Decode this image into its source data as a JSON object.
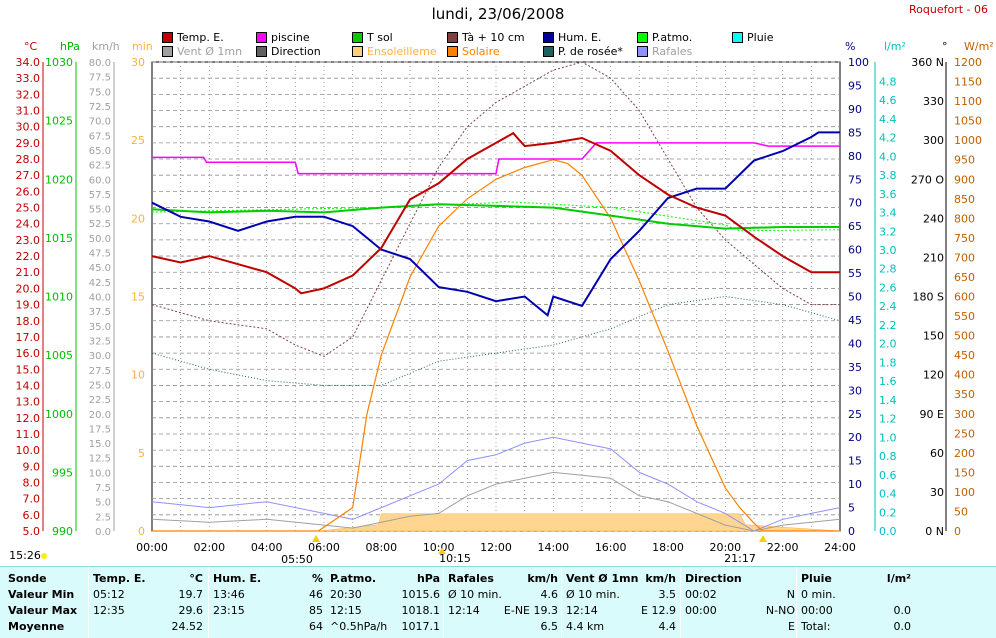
{
  "header": {
    "title": "lundi, 23/06/2008",
    "station": "Roquefort - 06"
  },
  "legend": [
    {
      "label": "Temp. E.",
      "color": "#c00000"
    },
    {
      "label": "piscine",
      "color": "#ff00ff"
    },
    {
      "label": "T sol",
      "color": "#00cc00"
    },
    {
      "label": "Tà + 10 cm",
      "color": "#804040"
    },
    {
      "label": "Hum. E.",
      "color": "#0000a0"
    },
    {
      "label": "P.atmo.",
      "color": "#00ff00"
    },
    {
      "label": "Pluie",
      "color": "#00ffff"
    },
    {
      "label": "Vent Ø 1mn",
      "color": "#a0a0a0"
    },
    {
      "label": "Direction",
      "color": "#606060"
    },
    {
      "label": "Ensoleilleme",
      "color": "#ffd080"
    },
    {
      "label": "Solaire",
      "color": "#ff8000"
    },
    {
      "label": "P. de rosée*",
      "color": "#206060"
    },
    {
      "label": "Rafales",
      "color": "#9090ff"
    }
  ],
  "axes": {
    "units": [
      "°C",
      "hPa",
      "km/h",
      "min",
      "%",
      "l/m²",
      "°",
      "W/m²"
    ],
    "temp_ticks": [
      "34.0",
      "33.0",
      "32.0",
      "31.0",
      "30.0",
      "29.0",
      "28.0",
      "27.0",
      "26.0",
      "25.0",
      "24.0",
      "23.0",
      "22.0",
      "21.0",
      "20.0",
      "19.0",
      "18.0",
      "17.0",
      "16.0",
      "15.0",
      "14.0",
      "13.0",
      "12.0",
      "11.0",
      "10.0",
      "9.0",
      "8.0",
      "7.0",
      "6.0",
      "5.0"
    ],
    "press_ticks": [
      "1030",
      "1025",
      "1020",
      "1015",
      "1010",
      "1005",
      "1000",
      "995",
      "990"
    ],
    "wind_ticks": [
      "80.0",
      "77.5",
      "75.0",
      "72.5",
      "70.0",
      "67.5",
      "65.0",
      "62.5",
      "60.0",
      "57.5",
      "55.0",
      "52.5",
      "50.0",
      "47.5",
      "45.0",
      "42.5",
      "40.0",
      "37.5",
      "35.0",
      "32.5",
      "30.0",
      "27.5",
      "25.0",
      "22.5",
      "20.0",
      "17.5",
      "15.0",
      "12.5",
      "10.0",
      "7.5",
      "5.0",
      "2.5",
      "0.0"
    ],
    "min_ticks": [
      "30",
      "25",
      "20",
      "15",
      "10",
      "5",
      "0"
    ],
    "hum_ticks": [
      "100",
      "95",
      "90",
      "85",
      "80",
      "75",
      "70",
      "65",
      "60",
      "55",
      "50",
      "45",
      "40",
      "35",
      "30",
      "25",
      "20",
      "15",
      "10",
      "5",
      "0"
    ],
    "rain_ticks": [
      "4.8",
      "4.6",
      "4.4",
      "4.2",
      "4.0",
      "3.8",
      "3.6",
      "3.4",
      "3.2",
      "3.0",
      "2.8",
      "2.6",
      "2.4",
      "2.2",
      "2.0",
      "1.8",
      "1.6",
      "1.4",
      "1.2",
      "1.0",
      "0.8",
      "0.6",
      "0.4",
      "0.2",
      "0.0"
    ],
    "dir_ticks": [
      "360 N",
      "330",
      "300",
      "270 O",
      "240",
      "210",
      "180 S",
      "150",
      "120",
      "90 E",
      "60",
      "30",
      "0 N"
    ],
    "solar_ticks": [
      "1200",
      "1150",
      "1100",
      "1050",
      "1000",
      "950",
      "900",
      "850",
      "800",
      "750",
      "700",
      "650",
      "600",
      "550",
      "500",
      "450",
      "400",
      "350",
      "300",
      "250",
      "200",
      "150",
      "100",
      "50",
      "0"
    ],
    "time_ticks": [
      "00:00",
      "02:00",
      "04:00",
      "06:00",
      "08:00",
      "10:00",
      "12:00",
      "14:00",
      "16:00",
      "18:00",
      "20:00",
      "22:00",
      "24:00"
    ]
  },
  "events": [
    {
      "label": "15:26"
    },
    {
      "label": "05:50"
    },
    {
      "label": "10:15"
    },
    {
      "label": "21:17"
    }
  ],
  "chart_data": {
    "type": "line",
    "x_unit": "heure",
    "xlim": [
      "00:00",
      "24:00"
    ],
    "series": [
      {
        "name": "Temp. E.",
        "unit": "°C",
        "x": [
          0,
          1,
          2,
          3,
          4,
          5,
          5.2,
          6,
          7,
          8,
          9,
          10,
          11,
          12,
          12.6,
          13,
          14,
          15,
          16,
          17,
          18,
          19,
          20,
          21,
          22,
          23,
          24
        ],
        "y": [
          22,
          21.6,
          22,
          21.5,
          21,
          20,
          19.7,
          20,
          20.8,
          22.5,
          25.5,
          26.5,
          28,
          29,
          29.6,
          28.8,
          29,
          29.3,
          28.5,
          27,
          25.8,
          25,
          24.5,
          23.2,
          22,
          21,
          21
        ]
      },
      {
        "name": "Hum. E.",
        "unit": "%",
        "x": [
          0,
          1,
          2,
          3,
          4,
          5,
          6,
          7,
          8,
          9,
          10,
          11,
          12,
          13,
          13.8,
          14,
          15,
          16,
          17,
          18,
          19,
          20,
          21,
          22,
          23,
          23.25,
          24
        ],
        "y": [
          70,
          67,
          66,
          64,
          66,
          67,
          67,
          65,
          60,
          58,
          52,
          51,
          49,
          50,
          46,
          50,
          48,
          58,
          64,
          71,
          73,
          73,
          79,
          81,
          84,
          85,
          85
        ]
      },
      {
        "name": "T sol",
        "unit": "°C",
        "x": [
          0,
          2,
          4,
          6,
          8,
          10,
          12,
          14,
          16,
          18,
          20,
          22,
          24
        ],
        "y": [
          24.9,
          24.7,
          24.8,
          24.7,
          25,
          25.2,
          25.1,
          25,
          24.5,
          24,
          23.7,
          23.8,
          23.8
        ]
      },
      {
        "name": "P.atmo.",
        "unit": "hPa",
        "x": [
          0,
          4,
          8,
          12,
          12.25,
          16,
          20,
          20.5,
          24
        ],
        "y": [
          1017.2,
          1017.4,
          1017.6,
          1018,
          1018.1,
          1017.6,
          1016.1,
          1015.6,
          1015.7
        ]
      },
      {
        "name": "piscine",
        "unit": "°C",
        "x": [
          0,
          1.8,
          1.9,
          5,
          5.1,
          12,
          12.1,
          15,
          15.5,
          18,
          20,
          21,
          21.5,
          24
        ],
        "y": [
          28.1,
          28.1,
          27.8,
          27.8,
          27.1,
          27.1,
          28,
          28,
          29,
          29,
          29,
          29,
          28.8,
          28.8
        ]
      },
      {
        "name": "Tà + 10 cm",
        "unit": "°C",
        "x": [
          0,
          2,
          4,
          5,
          6,
          7,
          8,
          9,
          10,
          11,
          12,
          13,
          14,
          15,
          16,
          17,
          18,
          19,
          20,
          21,
          22,
          23,
          24
        ],
        "y": [
          19,
          18,
          17.5,
          16.5,
          15.8,
          17,
          20.5,
          24,
          27.5,
          30,
          31.5,
          32.5,
          33.5,
          34,
          33,
          31,
          28,
          25,
          23,
          21.5,
          20,
          19,
          19
        ]
      },
      {
        "name": "P. de rosée*",
        "unit": "°C",
        "x": [
          0,
          2,
          4,
          6,
          8,
          10,
          12,
          14,
          16,
          18,
          20,
          22,
          24
        ],
        "y": [
          16,
          15,
          14.3,
          14,
          14,
          15.5,
          16,
          16.5,
          17.5,
          19,
          19.5,
          19,
          18
        ]
      },
      {
        "name": "Solaire",
        "unit": "W/m²",
        "x": [
          0,
          5.8,
          7,
          7.5,
          8,
          9,
          10,
          11,
          12,
          13,
          14,
          14.5,
          15,
          16,
          17,
          18,
          19,
          20,
          20.5,
          21,
          21.3,
          24
        ],
        "y": [
          0,
          0,
          60,
          300,
          450,
          650,
          780,
          850,
          900,
          930,
          950,
          940,
          910,
          800,
          640,
          460,
          270,
          110,
          60,
          20,
          0,
          0
        ]
      },
      {
        "name": "Rafales",
        "unit": "km/h",
        "x": [
          0,
          2,
          4,
          6,
          7,
          8,
          9,
          10,
          11,
          12,
          13,
          14,
          15,
          16,
          17,
          18,
          19,
          20,
          21,
          22,
          23,
          24
        ],
        "y": [
          5,
          4,
          5,
          3,
          2,
          4,
          6,
          8,
          12,
          13,
          15,
          16,
          15,
          14,
          10,
          8,
          5,
          3,
          0,
          2,
          3,
          4
        ]
      },
      {
        "name": "Vent Ø 1mn",
        "unit": "km/h",
        "x": [
          0,
          2,
          4,
          6,
          7,
          8,
          9,
          10,
          11,
          12,
          13,
          14,
          15,
          16,
          17,
          18,
          19,
          20,
          21,
          22,
          23,
          24
        ],
        "y": [
          2,
          1.5,
          2,
          1,
          0.5,
          1.5,
          2.5,
          3,
          6,
          8,
          9,
          10,
          9.5,
          9,
          6,
          5,
          3,
          1,
          0,
          1,
          1.5,
          2
        ]
      },
      {
        "name": "Ensoleilleme",
        "unit": "min",
        "x": [
          0,
          5.8,
          7.9,
          8,
          20.5,
          20.7,
          24
        ],
        "y": [
          0,
          0,
          0.4,
          1.1,
          1.1,
          0.4,
          0
        ]
      }
    ]
  },
  "table": {
    "headers": [
      {
        "name": "Sonde",
        "unit": ""
      },
      {
        "name": "Temp. E.",
        "unit": "°C"
      },
      {
        "name": "Hum. E.",
        "unit": "%"
      },
      {
        "name": "P.atmo.",
        "unit": "hPa"
      },
      {
        "name": "Rafales",
        "unit": "km/h"
      },
      {
        "name": "Vent Ø 1mn",
        "unit": "km/h"
      },
      {
        "name": "Direction",
        "unit": ""
      },
      {
        "name": "Pluie",
        "unit": "l/m²"
      }
    ],
    "row_labels": [
      "Valeur Min",
      "Valeur Max",
      "Moyenne"
    ],
    "cells": {
      "temp": [
        [
          "05:12",
          "19.7"
        ],
        [
          "12:35",
          "29.6"
        ],
        [
          "",
          "24.52"
        ]
      ],
      "hum": [
        [
          "13:46",
          "46"
        ],
        [
          "23:15",
          "85"
        ],
        [
          "",
          "64"
        ]
      ],
      "press": [
        [
          "20:30",
          "1015.6"
        ],
        [
          "12:15",
          "1018.1"
        ],
        [
          "^0.5hPa/h",
          "1017.1"
        ]
      ],
      "gust": [
        [
          "Ø 10 min.",
          "4.6"
        ],
        [
          "12:14",
          "E-NE 19.3"
        ],
        [
          "",
          "6.5"
        ]
      ],
      "wind": [
        [
          "Ø 10 min.",
          "3.5"
        ],
        [
          "12:14",
          "E 12.9"
        ],
        [
          "4.4 km",
          "4.4"
        ]
      ],
      "dir": [
        [
          "00:02",
          "N"
        ],
        [
          "00:00",
          "N-NO"
        ],
        [
          "",
          "E"
        ]
      ],
      "rain": [
        [
          "0 min.",
          ""
        ],
        [
          "00:00",
          "0.0"
        ],
        [
          "Total:",
          "0.0"
        ]
      ]
    }
  }
}
